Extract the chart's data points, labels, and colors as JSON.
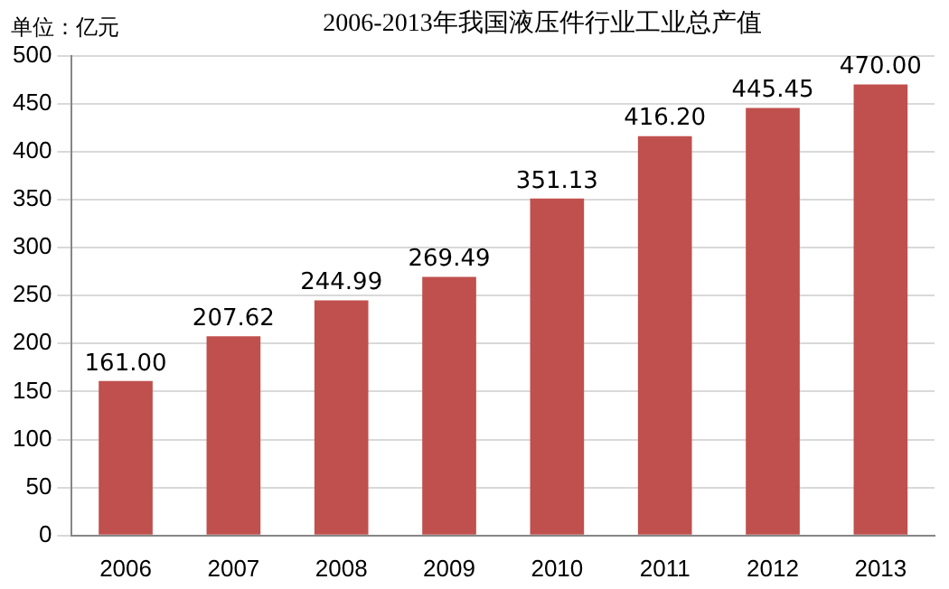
{
  "chart_data": {
    "type": "bar",
    "title": "2006-2013年我国液压件行业工业总产值",
    "annotations": [
      "单位：亿元"
    ],
    "categories": [
      "2006",
      "2007",
      "2008",
      "2009",
      "2010",
      "2011",
      "2012",
      "2013"
    ],
    "values": [
      161.0,
      207.62,
      244.99,
      269.49,
      351.13,
      416.2,
      445.45,
      470.0
    ],
    "value_labels": [
      "161.00",
      "207.62",
      "244.99",
      "269.49",
      "351.13",
      "416.20",
      "445.45",
      "470.00"
    ],
    "color": "#c0504d",
    "ylim": [
      0,
      500
    ],
    "yticks": [
      0,
      50,
      100,
      150,
      200,
      250,
      300,
      350,
      400,
      450,
      500
    ],
    "grid": "y",
    "legend": false
  }
}
